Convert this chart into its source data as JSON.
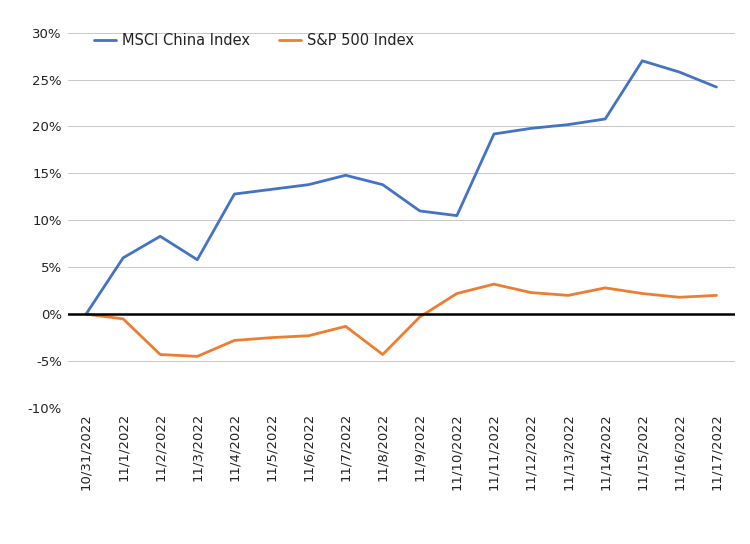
{
  "dates": [
    "10/31/2022",
    "11/1/2022",
    "11/2/2022",
    "11/3/2022",
    "11/4/2022",
    "11/5/2022",
    "11/6/2022",
    "11/7/2022",
    "11/8/2022",
    "11/9/2022",
    "11/10/2022",
    "11/11/2022",
    "11/12/2022",
    "11/13/2022",
    "11/14/2022",
    "11/15/2022",
    "11/16/2022",
    "11/17/2022"
  ],
  "msci_china": [
    0.0,
    6.0,
    8.3,
    5.8,
    12.8,
    13.3,
    13.8,
    14.8,
    13.8,
    11.0,
    10.5,
    19.2,
    19.8,
    20.2,
    20.8,
    27.0,
    25.8,
    24.2
  ],
  "sp500": [
    0.0,
    -0.5,
    -4.3,
    -4.5,
    -2.8,
    -2.5,
    -2.3,
    -1.3,
    -4.3,
    -0.3,
    2.2,
    3.2,
    2.3,
    2.0,
    2.8,
    2.2,
    1.8,
    2.0
  ],
  "msci_color": "#4472C4",
  "sp500_color": "#ED7D31",
  "msci_label": "MSCI China Index",
  "sp500_label": "S&P 500 Index",
  "ylim_min": -10,
  "ylim_max": 30,
  "yticks": [
    -10,
    -5,
    0,
    5,
    10,
    15,
    20,
    25,
    30
  ],
  "background_color": "#ffffff",
  "grid_color": "#c8c8c8",
  "line_width": 2.0,
  "legend_fontsize": 10.5,
  "tick_fontsize": 9.5
}
